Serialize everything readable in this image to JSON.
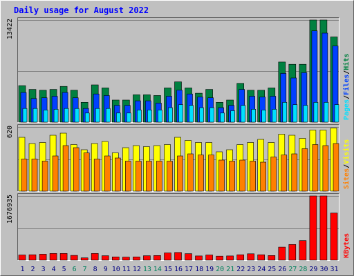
{
  "chart_data": {
    "type": "bar",
    "title": "Daily usage for August 2022",
    "categories": [
      "1",
      "2",
      "3",
      "4",
      "5",
      "6",
      "7",
      "8",
      "9",
      "10",
      "11",
      "12",
      "13",
      "14",
      "15",
      "16",
      "17",
      "18",
      "19",
      "20",
      "21",
      "22",
      "23",
      "24",
      "25",
      "26",
      "27",
      "28",
      "29",
      "30",
      "31"
    ],
    "weekend_days": [
      "6",
      "7",
      "13",
      "14",
      "20",
      "21",
      "27",
      "28"
    ],
    "panels": [
      {
        "name": "hits-files-pages",
        "ylabel_parts": [
          "Pages",
          "/",
          "Files",
          "/",
          "Hits"
        ],
        "max_label": "13422",
        "ylim": [
          0,
          13422
        ],
        "series": [
          {
            "name": "Hits",
            "color": "#008040",
            "values": [
              4800,
              4300,
              4200,
              4300,
              4700,
              4200,
              2600,
              4900,
              4500,
              2900,
              2900,
              3600,
              3600,
              3500,
              4500,
              5300,
              4500,
              3800,
              4300,
              2600,
              2900,
              5100,
              4200,
              4200,
              4500,
              7900,
              7600,
              7600,
              13422,
              13422,
              11200
            ]
          },
          {
            "name": "Files",
            "color": "#0040ff",
            "values": [
              3900,
              3100,
              3200,
              3400,
              3900,
              3200,
              1800,
              3700,
              3500,
              2200,
              2200,
              2800,
              2800,
              2500,
              3400,
              4200,
              3700,
              3300,
              3200,
              1900,
              2200,
              4300,
              3400,
              3300,
              3400,
              6400,
              5800,
              6500,
              12000,
              11700,
              10000
            ]
          },
          {
            "name": "Pages",
            "color": "#00e0ff",
            "values": [
              1800,
              1800,
              1600,
              1700,
              1800,
              1800,
              1200,
              1800,
              1800,
              1200,
              1200,
              1600,
              1600,
              1600,
              1900,
              2300,
              2200,
              1900,
              1900,
              1200,
              1500,
              2200,
              1700,
              1600,
              1700,
              2600,
              2300,
              2200,
              2600,
              2600,
              2300
            ]
          }
        ]
      },
      {
        "name": "visits-sites",
        "ylabel_parts": [
          "Sites",
          "/",
          "Visits"
        ],
        "max_label": "620",
        "ylim": [
          0,
          620
        ],
        "series": [
          {
            "name": "Visits",
            "color": "#ffff00",
            "values": [
              520,
              460,
              470,
              540,
              560,
              450,
              400,
              460,
              480,
              370,
              420,
              440,
              430,
              440,
              450,
              520,
              490,
              470,
              470,
              380,
              400,
              450,
              470,
              500,
              470,
              550,
              540,
              510,
              590,
              590,
              610
            ]
          },
          {
            "name": "Sites",
            "color": "#ff8000",
            "values": [
              310,
              310,
              290,
              340,
              440,
              420,
              370,
              310,
              340,
              320,
              290,
              290,
              290,
              290,
              290,
              340,
              360,
              350,
              350,
              300,
              290,
              300,
              290,
              280,
              330,
              350,
              360,
              410,
              450,
              440,
              460
            ]
          }
        ]
      },
      {
        "name": "kbytes",
        "ylabel_parts": [
          "KBytes"
        ],
        "max_label": "1676935",
        "ylim": [
          0,
          1676935
        ],
        "series": [
          {
            "name": "KBytes",
            "color": "#ff0000",
            "values": [
              135000,
              140000,
              155000,
              175000,
              175000,
              125000,
              60000,
              175000,
              115000,
              85000,
              80000,
              85000,
              115000,
              120000,
              190000,
              200000,
              170000,
              110000,
              135000,
              105000,
              110000,
              140000,
              165000,
              140000,
              120000,
              340000,
              410000,
              510000,
              1676935,
              1676935,
              1230000
            ]
          }
        ]
      }
    ],
    "colors": {
      "title": "#0000ff",
      "weekday_label": "#000080",
      "weekend_label": "#00805c",
      "pages": "#00e0ff",
      "files": "#0040ff",
      "hits": "#008040",
      "sites": "#ff8000",
      "visits": "#ffff00",
      "kbytes": "#ff0000",
      "slash": "#000000"
    }
  }
}
